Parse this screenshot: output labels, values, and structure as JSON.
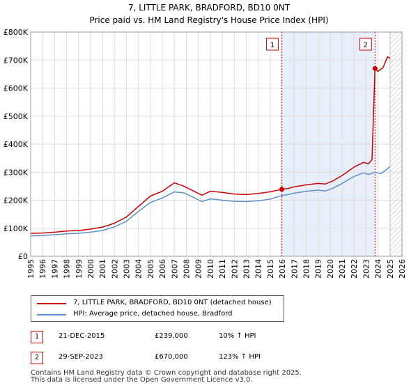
{
  "header": {
    "title_line1": "7, LITTLE PARK, BRADFORD, BD10 0NT",
    "title_line2": "Price paid vs. HM Land Registry's House Price Index (HPI)"
  },
  "chart_data": {
    "type": "line",
    "title": "7, LITTLE PARK, BRADFORD, BD10 0NT",
    "subtitle": "Price paid vs. HM Land Registry's House Price Index (HPI)",
    "xlabel": "",
    "ylabel": "",
    "xlim": [
      1995,
      2026
    ],
    "ylim": [
      0,
      800000
    ],
    "x_ticks": [
      1995,
      1996,
      1997,
      1998,
      1999,
      2000,
      2001,
      2002,
      2003,
      2004,
      2005,
      2006,
      2007,
      2008,
      2009,
      2010,
      2011,
      2012,
      2013,
      2014,
      2015,
      2016,
      2017,
      2018,
      2019,
      2020,
      2021,
      2022,
      2023,
      2024,
      2025,
      2026
    ],
    "y_ticks": [
      0,
      100000,
      200000,
      300000,
      400000,
      500000,
      600000,
      700000,
      800000
    ],
    "y_tick_labels": [
      "£0",
      "£100K",
      "£200K",
      "£300K",
      "£400K",
      "£500K",
      "£600K",
      "£700K",
      "£800K"
    ],
    "grid": true,
    "shaded_region": [
      2015.97,
      2023.75
    ],
    "projection_start": 2025.0,
    "series": [
      {
        "name": "7, LITTLE PARK, BRADFORD, BD10 0NT (detached house)",
        "color": "#cc0000",
        "points": [
          [
            1995.0,
            82000
          ],
          [
            1996.0,
            83000
          ],
          [
            1997.0,
            86000
          ],
          [
            1998.0,
            90000
          ],
          [
            1999.0,
            92000
          ],
          [
            2000.0,
            97000
          ],
          [
            2001.0,
            104000
          ],
          [
            2002.0,
            118000
          ],
          [
            2003.0,
            140000
          ],
          [
            2004.0,
            178000
          ],
          [
            2005.0,
            215000
          ],
          [
            2006.0,
            232000
          ],
          [
            2007.0,
            262000
          ],
          [
            2007.8,
            250000
          ],
          [
            2008.5,
            235000
          ],
          [
            2009.3,
            218000
          ],
          [
            2010.0,
            232000
          ],
          [
            2011.0,
            228000
          ],
          [
            2012.0,
            222000
          ],
          [
            2013.0,
            220000
          ],
          [
            2014.0,
            224000
          ],
          [
            2015.0,
            230000
          ],
          [
            2015.97,
            239000
          ],
          [
            2016.5,
            242000
          ],
          [
            2017.0,
            248000
          ],
          [
            2018.0,
            255000
          ],
          [
            2019.0,
            260000
          ],
          [
            2019.6,
            258000
          ],
          [
            2020.2,
            268000
          ],
          [
            2021.0,
            288000
          ],
          [
            2022.0,
            318000
          ],
          [
            2022.8,
            335000
          ],
          [
            2023.2,
            330000
          ],
          [
            2023.5,
            345000
          ],
          [
            2023.75,
            670000
          ],
          [
            2024.0,
            660000
          ],
          [
            2024.4,
            672000
          ],
          [
            2024.8,
            712000
          ],
          [
            2025.0,
            705000
          ]
        ]
      },
      {
        "name": "HPI: Average price, detached house, Bradford",
        "color": "#5b8fd0",
        "points": [
          [
            1995.0,
            73000
          ],
          [
            1996.0,
            74000
          ],
          [
            1997.0,
            77000
          ],
          [
            1998.0,
            80000
          ],
          [
            1999.0,
            82000
          ],
          [
            2000.0,
            86000
          ],
          [
            2001.0,
            92000
          ],
          [
            2002.0,
            105000
          ],
          [
            2003.0,
            125000
          ],
          [
            2004.0,
            160000
          ],
          [
            2005.0,
            192000
          ],
          [
            2006.0,
            208000
          ],
          [
            2007.0,
            230000
          ],
          [
            2007.8,
            226000
          ],
          [
            2008.5,
            212000
          ],
          [
            2009.3,
            195000
          ],
          [
            2010.0,
            205000
          ],
          [
            2011.0,
            200000
          ],
          [
            2012.0,
            196000
          ],
          [
            2013.0,
            195000
          ],
          [
            2014.0,
            198000
          ],
          [
            2015.0,
            204000
          ],
          [
            2015.97,
            217000
          ],
          [
            2016.5,
            220000
          ],
          [
            2017.0,
            225000
          ],
          [
            2018.0,
            232000
          ],
          [
            2019.0,
            236000
          ],
          [
            2019.6,
            233000
          ],
          [
            2020.2,
            242000
          ],
          [
            2021.0,
            260000
          ],
          [
            2022.0,
            285000
          ],
          [
            2022.8,
            298000
          ],
          [
            2023.2,
            292000
          ],
          [
            2023.75,
            300000
          ],
          [
            2024.2,
            295000
          ],
          [
            2024.6,
            305000
          ],
          [
            2025.0,
            320000
          ]
        ]
      }
    ],
    "annotations": [
      {
        "label": "1",
        "x": 2015.97,
        "y": 239000
      },
      {
        "label": "2",
        "x": 2023.75,
        "y": 670000
      }
    ]
  },
  "legend": {
    "items": [
      {
        "label": "7, LITTLE PARK, BRADFORD, BD10 0NT (detached house)",
        "color": "#cc0000"
      },
      {
        "label": "HPI: Average price, detached house, Bradford",
        "color": "#5b8fd0"
      }
    ]
  },
  "sales": [
    {
      "badge": "1",
      "date": "21-DEC-2015",
      "price": "£239,000",
      "hpi": "10% ↑ HPI"
    },
    {
      "badge": "2",
      "date": "29-SEP-2023",
      "price": "£670,000",
      "hpi": "123% ↑ HPI"
    }
  ],
  "footer": {
    "line1": "Contains HM Land Registry data © Crown copyright and database right 2025.",
    "line2": "This data is licensed under the Open Government Licence v3.0."
  }
}
